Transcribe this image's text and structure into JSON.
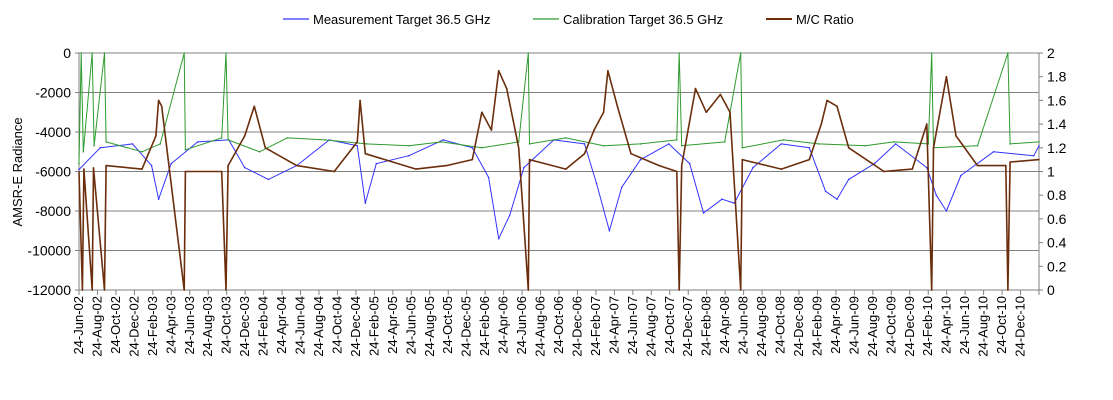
{
  "chart_data": {
    "type": "line",
    "title": "",
    "ylabel": "AMSR-E Radiance",
    "y2label": "",
    "ylim": [
      -12000,
      0
    ],
    "y2lim": [
      0,
      2
    ],
    "yticks": [
      0,
      -2000,
      -4000,
      -6000,
      -8000,
      -10000,
      -12000
    ],
    "y2ticks": [
      2,
      1.8,
      1.6,
      1.4,
      1.2,
      1,
      0.8,
      0.6,
      0.4,
      0.2,
      0
    ],
    "grid": true,
    "legend_position": "top",
    "x_start": "2002-06-24",
    "x_end": "2011-01-10",
    "x_tick_labels": [
      "24-Jun-02",
      "24-Aug-02",
      "24-Oct-02",
      "24-Dec-02",
      "24-Feb-03",
      "24-Apr-03",
      "24-Jun-03",
      "24-Aug-03",
      "24-Oct-03",
      "24-Dec-03",
      "24-Feb-04",
      "24-Apr-04",
      "24-Jun-04",
      "24-Aug-04",
      "24-Oct-04",
      "24-Dec-04",
      "24-Feb-05",
      "24-Apr-05",
      "24-Jun-05",
      "24-Aug-05",
      "24-Oct-05",
      "24-Dec-05",
      "24-Feb-06",
      "24-Apr-06",
      "24-Jun-06",
      "24-Aug-06",
      "24-Oct-06",
      "24-Dec-06",
      "24-Feb-07",
      "24-Apr-07",
      "24-Jun-07",
      "24-Aug-07",
      "24-Oct-07",
      "24-Dec-07",
      "24-Feb-08",
      "24-Apr-08",
      "24-Jun-08",
      "24-Aug-08",
      "24-Oct-08",
      "24-Dec-08",
      "24-Feb-09",
      "24-Apr-09",
      "24-Jun-09",
      "24-Aug-09",
      "24-Oct-09",
      "24-Dec-09",
      "24-Feb-10",
      "24-Apr-10",
      "24-Jun-10",
      "24-Aug-10",
      "24-Oct-10",
      "24-Dec-10"
    ],
    "series": [
      {
        "name": "Measurement Target 36.5 GHz",
        "color": "#3333ff",
        "axis": "left",
        "points": [
          [
            "2002-06-24",
            -5900
          ],
          [
            "2002-09-01",
            -4800
          ],
          [
            "2002-12-15",
            -4600
          ],
          [
            "2003-02-15",
            -5700
          ],
          [
            "2003-03-10",
            -7400
          ],
          [
            "2003-04-20",
            -5600
          ],
          [
            "2003-07-15",
            -4500
          ],
          [
            "2003-10-24",
            -4400
          ],
          [
            "2003-12-15",
            -5800
          ],
          [
            "2004-03-01",
            -6400
          ],
          [
            "2004-06-01",
            -5700
          ],
          [
            "2004-09-15",
            -4400
          ],
          [
            "2004-12-15",
            -4700
          ],
          [
            "2005-01-10",
            -7600
          ],
          [
            "2005-02-15",
            -5600
          ],
          [
            "2005-06-01",
            -5200
          ],
          [
            "2005-09-20",
            -4400
          ],
          [
            "2005-12-24",
            -4800
          ],
          [
            "2006-02-15",
            -6300
          ],
          [
            "2006-03-20",
            -9400
          ],
          [
            "2006-04-25",
            -8200
          ],
          [
            "2006-06-10",
            -5800
          ],
          [
            "2006-09-15",
            -4400
          ],
          [
            "2006-12-24",
            -4600
          ],
          [
            "2007-02-01",
            -6600
          ],
          [
            "2007-03-15",
            -9000
          ],
          [
            "2007-04-24",
            -6800
          ],
          [
            "2007-06-24",
            -5400
          ],
          [
            "2007-09-24",
            -4600
          ],
          [
            "2007-12-01",
            -5600
          ],
          [
            "2008-01-15",
            -8100
          ],
          [
            "2008-03-15",
            -7400
          ],
          [
            "2008-04-24",
            -7600
          ],
          [
            "2008-06-24",
            -5800
          ],
          [
            "2008-09-24",
            -4600
          ],
          [
            "2008-12-24",
            -4800
          ],
          [
            "2009-02-15",
            -7000
          ],
          [
            "2009-03-24",
            -7400
          ],
          [
            "2009-05-01",
            -6400
          ],
          [
            "2009-07-24",
            -5600
          ],
          [
            "2009-10-01",
            -4600
          ],
          [
            "2010-01-10",
            -5800
          ],
          [
            "2010-02-10",
            -7200
          ],
          [
            "2010-03-15",
            -8000
          ],
          [
            "2010-05-01",
            -6200
          ],
          [
            "2010-08-15",
            -5000
          ],
          [
            "2010-12-24",
            -5200
          ],
          [
            "2011-01-10",
            -4700
          ]
        ]
      },
      {
        "name": "Calibration Target 36.5 GHz",
        "color": "#2e9b2e",
        "axis": "left",
        "points": [
          [
            "2002-06-24",
            -5600
          ],
          [
            "2002-07-01",
            0
          ],
          [
            "2002-07-08",
            -5000
          ],
          [
            "2002-08-06",
            0
          ],
          [
            "2002-08-12",
            -4700
          ],
          [
            "2002-09-15",
            0
          ],
          [
            "2002-09-20",
            -4500
          ],
          [
            "2003-01-15",
            -5000
          ],
          [
            "2003-03-15",
            -4600
          ],
          [
            "2003-06-01",
            0
          ],
          [
            "2003-06-05",
            -4900
          ],
          [
            "2003-10-01",
            -4300
          ],
          [
            "2003-10-15",
            0
          ],
          [
            "2003-10-22",
            -4400
          ],
          [
            "2004-02-01",
            -5000
          ],
          [
            "2004-05-01",
            -4300
          ],
          [
            "2004-09-01",
            -4400
          ],
          [
            "2005-01-15",
            -4600
          ],
          [
            "2005-06-01",
            -4700
          ],
          [
            "2005-09-15",
            -4500
          ],
          [
            "2006-01-24",
            -4800
          ],
          [
            "2006-05-24",
            -4500
          ],
          [
            "2006-06-24",
            0
          ],
          [
            "2006-06-28",
            -4600
          ],
          [
            "2006-10-24",
            -4300
          ],
          [
            "2007-02-24",
            -4700
          ],
          [
            "2007-06-24",
            -4600
          ],
          [
            "2007-10-20",
            -4400
          ],
          [
            "2007-10-28",
            0
          ],
          [
            "2007-11-05",
            -4700
          ],
          [
            "2008-03-24",
            -4500
          ],
          [
            "2008-05-15",
            0
          ],
          [
            "2008-05-20",
            -4800
          ],
          [
            "2008-10-01",
            -4400
          ],
          [
            "2009-01-24",
            -4600
          ],
          [
            "2009-06-24",
            -4700
          ],
          [
            "2009-09-24",
            -4500
          ],
          [
            "2010-01-15",
            -4600
          ],
          [
            "2010-01-26",
            0
          ],
          [
            "2010-02-01",
            -4800
          ],
          [
            "2010-06-24",
            -4700
          ],
          [
            "2010-10-01",
            0
          ],
          [
            "2010-10-08",
            -4600
          ],
          [
            "2011-01-10",
            -4500
          ]
        ]
      },
      {
        "name": "M/C Ratio",
        "color": "#6b2e0c",
        "axis": "right",
        "points": [
          [
            "2002-06-24",
            1.0
          ],
          [
            "2002-07-05",
            0
          ],
          [
            "2002-07-10",
            1.02
          ],
          [
            "2002-08-06",
            0
          ],
          [
            "2002-08-10",
            1.03
          ],
          [
            "2002-09-15",
            0
          ],
          [
            "2002-09-20",
            1.05
          ],
          [
            "2003-01-15",
            1.02
          ],
          [
            "2003-03-01",
            1.3
          ],
          [
            "2003-03-10",
            1.6
          ],
          [
            "2003-03-20",
            1.55
          ],
          [
            "2003-04-10",
            1.1
          ],
          [
            "2003-06-01",
            0
          ],
          [
            "2003-06-05",
            1.0
          ],
          [
            "2003-10-01",
            1.0
          ],
          [
            "2003-10-15",
            0
          ],
          [
            "2003-10-22",
            1.05
          ],
          [
            "2003-12-15",
            1.3
          ],
          [
            "2004-01-15",
            1.55
          ],
          [
            "2004-02-20",
            1.2
          ],
          [
            "2004-06-01",
            1.05
          ],
          [
            "2004-10-01",
            1.0
          ],
          [
            "2004-12-15",
            1.25
          ],
          [
            "2004-12-24",
            1.6
          ],
          [
            "2005-01-10",
            1.15
          ],
          [
            "2005-06-24",
            1.02
          ],
          [
            "2005-10-01",
            1.05
          ],
          [
            "2005-12-24",
            1.1
          ],
          [
            "2006-01-24",
            1.5
          ],
          [
            "2006-02-24",
            1.35
          ],
          [
            "2006-03-20",
            1.85
          ],
          [
            "2006-04-15",
            1.7
          ],
          [
            "2006-05-24",
            1.2
          ],
          [
            "2006-06-24",
            0
          ],
          [
            "2006-06-28",
            1.1
          ],
          [
            "2006-10-24",
            1.02
          ],
          [
            "2006-12-24",
            1.15
          ],
          [
            "2007-01-24",
            1.35
          ],
          [
            "2007-02-24",
            1.5
          ],
          [
            "2007-03-10",
            1.85
          ],
          [
            "2007-04-10",
            1.55
          ],
          [
            "2007-05-24",
            1.15
          ],
          [
            "2007-08-24",
            1.05
          ],
          [
            "2007-10-20",
            1.0
          ],
          [
            "2007-10-28",
            0
          ],
          [
            "2007-11-05",
            1.05
          ],
          [
            "2007-12-20",
            1.7
          ],
          [
            "2008-01-24",
            1.5
          ],
          [
            "2008-03-10",
            1.65
          ],
          [
            "2008-04-10",
            1.5
          ],
          [
            "2008-05-15",
            0
          ],
          [
            "2008-05-20",
            1.1
          ],
          [
            "2008-09-24",
            1.02
          ],
          [
            "2008-12-24",
            1.1
          ],
          [
            "2009-02-01",
            1.4
          ],
          [
            "2009-02-20",
            1.6
          ],
          [
            "2009-03-24",
            1.55
          ],
          [
            "2009-05-01",
            1.2
          ],
          [
            "2009-08-24",
            1.0
          ],
          [
            "2009-11-24",
            1.02
          ],
          [
            "2010-01-10",
            1.4
          ],
          [
            "2010-01-26",
            0
          ],
          [
            "2010-02-01",
            1.2
          ],
          [
            "2010-03-15",
            1.8
          ],
          [
            "2010-04-15",
            1.3
          ],
          [
            "2010-06-24",
            1.05
          ],
          [
            "2010-09-24",
            1.05
          ],
          [
            "2010-10-01",
            0
          ],
          [
            "2010-10-08",
            1.08
          ],
          [
            "2011-01-10",
            1.1
          ]
        ]
      }
    ]
  }
}
